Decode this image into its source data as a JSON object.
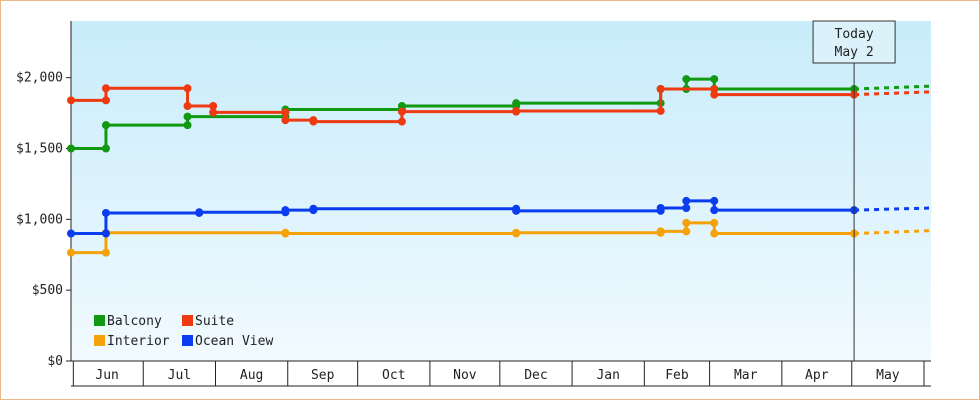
{
  "chart_data": {
    "type": "line",
    "step": true,
    "title": "",
    "xlabel": "",
    "ylabel": "",
    "x_axis": {
      "start": "2024-05-31",
      "end": "2025-06-04",
      "month_labels": [
        {
          "label": "Jun",
          "date": "2024-06-01"
        },
        {
          "label": "Jul",
          "date": "2024-07-01"
        },
        {
          "label": "Aug",
          "date": "2024-08-01"
        },
        {
          "label": "Sep",
          "date": "2024-09-01"
        },
        {
          "label": "Oct",
          "date": "2024-10-01"
        },
        {
          "label": "Nov",
          "date": "2024-11-01"
        },
        {
          "label": "Dec",
          "date": "2024-12-01"
        },
        {
          "label": "Jan",
          "date": "2025-01-01"
        },
        {
          "label": "Feb",
          "date": "2025-02-01"
        },
        {
          "label": "Mar",
          "date": "2025-03-01"
        },
        {
          "label": "Apr",
          "date": "2025-04-01"
        },
        {
          "label": "May",
          "date": "2025-05-01"
        },
        {
          "label": "",
          "date": "2025-06-01"
        }
      ]
    },
    "y_axis": {
      "ylim": [
        0,
        2400
      ],
      "ticks": [
        0,
        500,
        1000,
        1500,
        2000
      ],
      "tick_labels": [
        "$0",
        "$500",
        "$1,000",
        "$1,500",
        "$2,000"
      ]
    },
    "grid": false,
    "legend_position": "bottom-left",
    "today": {
      "date": "2025-05-02",
      "line1": "Today",
      "line2": "May 2"
    },
    "projection_end": "2025-06-04",
    "series": [
      {
        "name": "Balcony",
        "color": "#119911",
        "points": [
          {
            "date": "2024-05-31",
            "value": 1500
          },
          {
            "date": "2024-06-15",
            "value": 1500
          },
          {
            "date": "2024-06-15",
            "value": 1665
          },
          {
            "date": "2024-07-20",
            "value": 1665
          },
          {
            "date": "2024-07-20",
            "value": 1725
          },
          {
            "date": "2024-08-31",
            "value": 1725
          },
          {
            "date": "2024-08-31",
            "value": 1775
          },
          {
            "date": "2024-10-20",
            "value": 1775
          },
          {
            "date": "2024-10-20",
            "value": 1800
          },
          {
            "date": "2024-12-08",
            "value": 1800
          },
          {
            "date": "2024-12-08",
            "value": 1820
          },
          {
            "date": "2025-02-08",
            "value": 1820
          },
          {
            "date": "2025-02-08",
            "value": 1920
          },
          {
            "date": "2025-02-19",
            "value": 1920
          },
          {
            "date": "2025-02-19",
            "value": 1990
          },
          {
            "date": "2025-03-03",
            "value": 1990
          },
          {
            "date": "2025-03-03",
            "value": 1920
          },
          {
            "date": "2025-05-02",
            "value": 1920
          }
        ],
        "projection_value": 1940
      },
      {
        "name": "Suite",
        "color": "#ee3a11",
        "points": [
          {
            "date": "2024-05-31",
            "value": 1840
          },
          {
            "date": "2024-06-15",
            "value": 1840
          },
          {
            "date": "2024-06-15",
            "value": 1925
          },
          {
            "date": "2024-07-20",
            "value": 1925
          },
          {
            "date": "2024-07-20",
            "value": 1800
          },
          {
            "date": "2024-07-31",
            "value": 1800
          },
          {
            "date": "2024-07-31",
            "value": 1755
          },
          {
            "date": "2024-08-31",
            "value": 1755
          },
          {
            "date": "2024-08-31",
            "value": 1700
          },
          {
            "date": "2024-09-12",
            "value": 1700
          },
          {
            "date": "2024-09-12",
            "value": 1690
          },
          {
            "date": "2024-10-20",
            "value": 1690
          },
          {
            "date": "2024-10-20",
            "value": 1760
          },
          {
            "date": "2024-12-08",
            "value": 1760
          },
          {
            "date": "2024-12-08",
            "value": 1765
          },
          {
            "date": "2025-02-08",
            "value": 1765
          },
          {
            "date": "2025-02-08",
            "value": 1920
          },
          {
            "date": "2025-03-03",
            "value": 1920
          },
          {
            "date": "2025-03-03",
            "value": 1880
          },
          {
            "date": "2025-05-02",
            "value": 1880
          }
        ],
        "projection_value": 1900
      },
      {
        "name": "Interior",
        "color": "#f5a20a",
        "points": [
          {
            "date": "2024-05-31",
            "value": 765
          },
          {
            "date": "2024-06-15",
            "value": 765
          },
          {
            "date": "2024-06-15",
            "value": 905
          },
          {
            "date": "2024-08-31",
            "value": 905
          },
          {
            "date": "2024-08-31",
            "value": 900
          },
          {
            "date": "2024-12-08",
            "value": 900
          },
          {
            "date": "2024-12-08",
            "value": 905
          },
          {
            "date": "2025-02-08",
            "value": 905
          },
          {
            "date": "2025-02-08",
            "value": 915
          },
          {
            "date": "2025-02-19",
            "value": 915
          },
          {
            "date": "2025-02-19",
            "value": 975
          },
          {
            "date": "2025-03-03",
            "value": 975
          },
          {
            "date": "2025-03-03",
            "value": 900
          },
          {
            "date": "2025-05-02",
            "value": 900
          }
        ],
        "projection_value": 920
      },
      {
        "name": "Ocean View",
        "color": "#0a3cf0",
        "points": [
          {
            "date": "2024-05-31",
            "value": 900
          },
          {
            "date": "2024-06-15",
            "value": 900
          },
          {
            "date": "2024-06-15",
            "value": 1045
          },
          {
            "date": "2024-07-25",
            "value": 1045
          },
          {
            "date": "2024-07-25",
            "value": 1050
          },
          {
            "date": "2024-08-31",
            "value": 1050
          },
          {
            "date": "2024-08-31",
            "value": 1065
          },
          {
            "date": "2024-09-12",
            "value": 1065
          },
          {
            "date": "2024-09-12",
            "value": 1075
          },
          {
            "date": "2024-12-08",
            "value": 1075
          },
          {
            "date": "2024-12-08",
            "value": 1060
          },
          {
            "date": "2025-02-08",
            "value": 1060
          },
          {
            "date": "2025-02-08",
            "value": 1080
          },
          {
            "date": "2025-02-19",
            "value": 1080
          },
          {
            "date": "2025-02-19",
            "value": 1130
          },
          {
            "date": "2025-03-03",
            "value": 1130
          },
          {
            "date": "2025-03-03",
            "value": 1065
          },
          {
            "date": "2025-05-02",
            "value": 1065
          }
        ],
        "projection_value": 1080
      }
    ]
  }
}
